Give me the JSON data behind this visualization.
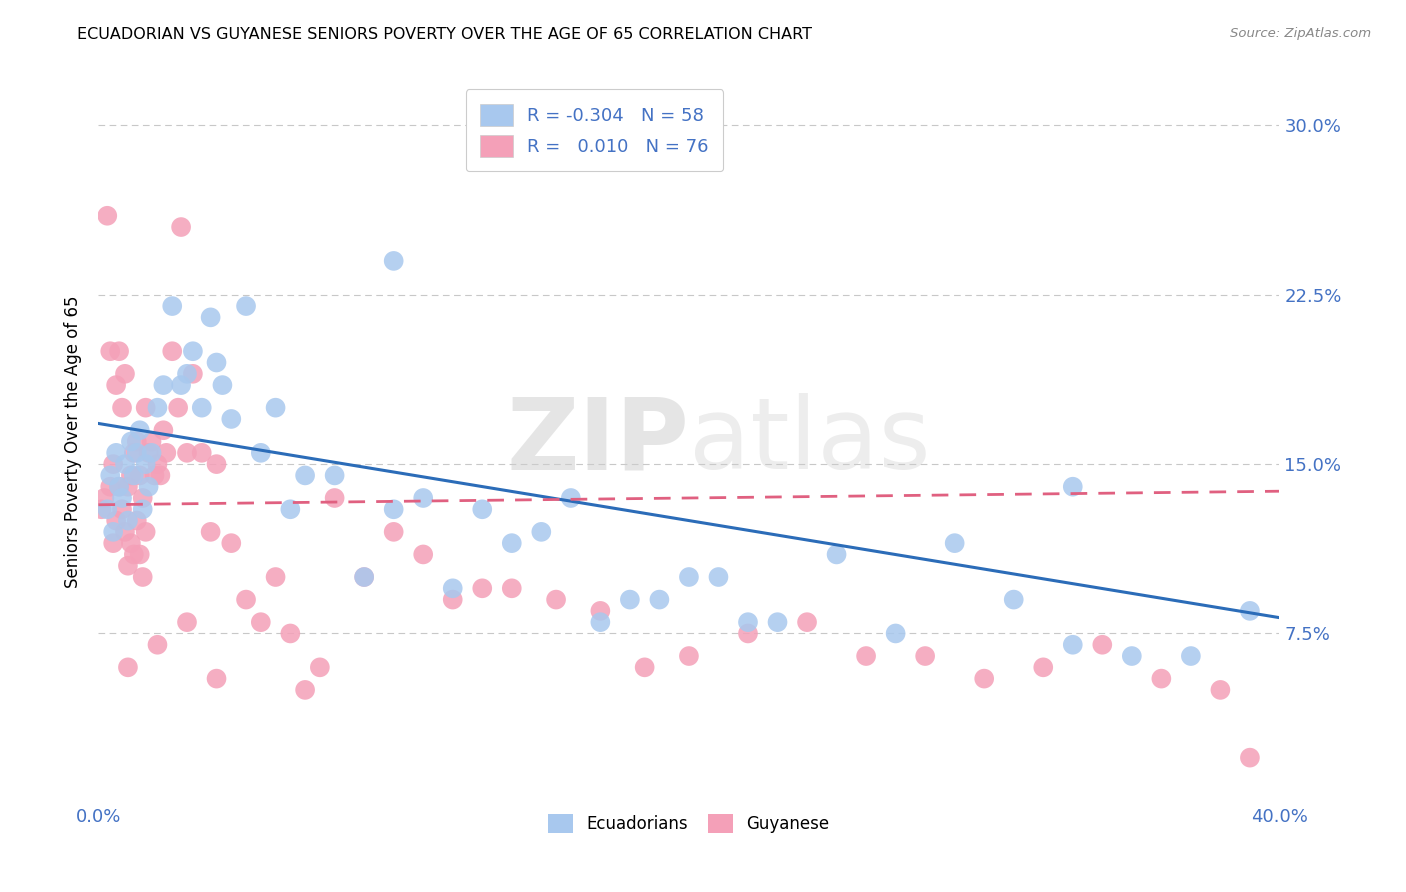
{
  "title": "ECUADORIAN VS GUYANESE SENIORS POVERTY OVER THE AGE OF 65 CORRELATION CHART",
  "source": "Source: ZipAtlas.com",
  "ylabel": "Seniors Poverty Over the Age of 65",
  "ytick_vals": [
    0.075,
    0.15,
    0.225,
    0.3
  ],
  "xlim": [
    0.0,
    0.4
  ],
  "ylim": [
    0.0,
    0.32
  ],
  "watermark": "ZIPatlas",
  "color_blue": "#A8C8EE",
  "color_pink": "#F4A0B8",
  "color_line_blue": "#2B6CB8",
  "color_line_pink": "#E06080",
  "color_text_blue": "#4472C4",
  "color_grid": "#C8C8C8",
  "ec_line_x0": 0.0,
  "ec_line_y0": 0.168,
  "ec_line_x1": 0.4,
  "ec_line_y1": 0.082,
  "gy_line_x0": 0.0,
  "gy_line_y0": 0.132,
  "gy_line_x1": 0.4,
  "gy_line_y1": 0.138,
  "ecuadorians_x": [
    0.003,
    0.004,
    0.005,
    0.006,
    0.007,
    0.008,
    0.009,
    0.01,
    0.011,
    0.012,
    0.013,
    0.014,
    0.015,
    0.016,
    0.017,
    0.018,
    0.02,
    0.022,
    0.025,
    0.028,
    0.03,
    0.032,
    0.035,
    0.038,
    0.04,
    0.042,
    0.045,
    0.05,
    0.055,
    0.06,
    0.065,
    0.07,
    0.08,
    0.09,
    0.1,
    0.11,
    0.13,
    0.15,
    0.17,
    0.19,
    0.21,
    0.23,
    0.25,
    0.27,
    0.29,
    0.31,
    0.33,
    0.35,
    0.37,
    0.39,
    0.1,
    0.12,
    0.14,
    0.16,
    0.18,
    0.2,
    0.22,
    0.33
  ],
  "ecuadorians_y": [
    0.13,
    0.145,
    0.12,
    0.155,
    0.14,
    0.135,
    0.15,
    0.125,
    0.16,
    0.145,
    0.155,
    0.165,
    0.13,
    0.15,
    0.14,
    0.155,
    0.175,
    0.185,
    0.22,
    0.185,
    0.19,
    0.2,
    0.175,
    0.215,
    0.195,
    0.185,
    0.17,
    0.22,
    0.155,
    0.175,
    0.13,
    0.145,
    0.145,
    0.1,
    0.13,
    0.135,
    0.13,
    0.12,
    0.08,
    0.09,
    0.1,
    0.08,
    0.11,
    0.075,
    0.115,
    0.09,
    0.07,
    0.065,
    0.065,
    0.085,
    0.24,
    0.095,
    0.115,
    0.135,
    0.09,
    0.1,
    0.08,
    0.14
  ],
  "guyanese_x": [
    0.001,
    0.002,
    0.003,
    0.004,
    0.004,
    0.005,
    0.005,
    0.006,
    0.006,
    0.007,
    0.007,
    0.008,
    0.008,
    0.009,
    0.009,
    0.01,
    0.01,
    0.011,
    0.011,
    0.012,
    0.012,
    0.013,
    0.013,
    0.014,
    0.014,
    0.015,
    0.015,
    0.016,
    0.016,
    0.017,
    0.018,
    0.019,
    0.02,
    0.021,
    0.022,
    0.023,
    0.025,
    0.027,
    0.028,
    0.03,
    0.032,
    0.035,
    0.038,
    0.04,
    0.045,
    0.05,
    0.055,
    0.06,
    0.065,
    0.07,
    0.075,
    0.08,
    0.09,
    0.1,
    0.11,
    0.12,
    0.13,
    0.14,
    0.155,
    0.17,
    0.185,
    0.2,
    0.22,
    0.24,
    0.26,
    0.28,
    0.3,
    0.32,
    0.34,
    0.36,
    0.38,
    0.39,
    0.01,
    0.02,
    0.03,
    0.04
  ],
  "guyanese_y": [
    0.13,
    0.135,
    0.26,
    0.2,
    0.14,
    0.15,
    0.115,
    0.185,
    0.125,
    0.2,
    0.14,
    0.175,
    0.13,
    0.19,
    0.12,
    0.14,
    0.105,
    0.145,
    0.115,
    0.155,
    0.11,
    0.16,
    0.125,
    0.145,
    0.11,
    0.135,
    0.1,
    0.175,
    0.12,
    0.155,
    0.16,
    0.145,
    0.15,
    0.145,
    0.165,
    0.155,
    0.2,
    0.175,
    0.255,
    0.155,
    0.19,
    0.155,
    0.12,
    0.15,
    0.115,
    0.09,
    0.08,
    0.1,
    0.075,
    0.05,
    0.06,
    0.135,
    0.1,
    0.12,
    0.11,
    0.09,
    0.095,
    0.095,
    0.09,
    0.085,
    0.06,
    0.065,
    0.075,
    0.08,
    0.065,
    0.065,
    0.055,
    0.06,
    0.07,
    0.055,
    0.05,
    0.02,
    0.06,
    0.07,
    0.08,
    0.055
  ]
}
